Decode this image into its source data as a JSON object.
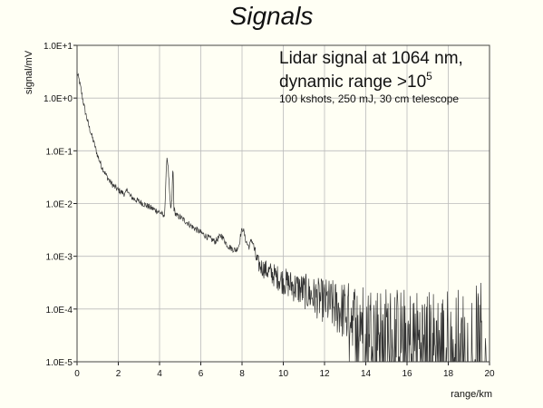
{
  "slide": {
    "title": "Signals"
  },
  "chart_data": {
    "type": "line",
    "title": "",
    "xlabel": "range/km",
    "ylabel": "signal/mV",
    "y_scale": "log",
    "xlim": [
      0,
      20
    ],
    "ylim": [
      1e-05,
      10
    ],
    "grid": true,
    "x_ticks": [
      "0",
      "2",
      "4",
      "6",
      "8",
      "10",
      "12",
      "14",
      "16",
      "18",
      "20"
    ],
    "y_ticks": [
      "1.0E+1",
      "1.0E+0",
      "1.0E-1",
      "1.0E-2",
      "1.0E-3",
      "1.0E-4",
      "1.0E-5"
    ],
    "annotation": {
      "line1": "Lidar signal at 1064 nm,",
      "line2_prefix": "dynamic range >10",
      "line2_sup": "5",
      "line3": "100 kshots, 250 mJ, 30 cm telescope"
    },
    "series_color": "#333333",
    "series": [
      {
        "values": [
          [
            0.0,
            3.0
          ],
          [
            0.1,
            2.2
          ],
          [
            0.2,
            1.4
          ],
          [
            0.3,
            0.85
          ],
          [
            0.4,
            0.55
          ],
          [
            0.5,
            0.38
          ],
          [
            0.6,
            0.27
          ],
          [
            0.8,
            0.15
          ],
          [
            1.0,
            0.08
          ],
          [
            1.2,
            0.05
          ],
          [
            1.4,
            0.035
          ],
          [
            1.6,
            0.026
          ],
          [
            1.8,
            0.021
          ],
          [
            2.0,
            0.018
          ],
          [
            2.2,
            0.016
          ],
          [
            2.35,
            0.015
          ],
          [
            2.45,
            0.019
          ],
          [
            2.55,
            0.014
          ],
          [
            2.8,
            0.012
          ],
          [
            3.0,
            0.011
          ],
          [
            3.3,
            0.0095
          ],
          [
            3.6,
            0.0082
          ],
          [
            3.9,
            0.0072
          ],
          [
            4.1,
            0.0065
          ],
          [
            4.2,
            0.0055
          ],
          [
            4.25,
            0.007
          ],
          [
            4.3,
            0.02
          ],
          [
            4.35,
            0.08
          ],
          [
            4.4,
            0.06
          ],
          [
            4.45,
            0.03
          ],
          [
            4.5,
            0.012
          ],
          [
            4.55,
            0.0075
          ],
          [
            4.6,
            0.012
          ],
          [
            4.65,
            0.055
          ],
          [
            4.7,
            0.008
          ],
          [
            4.8,
            0.006
          ],
          [
            5.0,
            0.0055
          ],
          [
            5.3,
            0.0045
          ],
          [
            5.6,
            0.0036
          ],
          [
            5.9,
            0.003
          ],
          [
            6.2,
            0.0025
          ],
          [
            6.5,
            0.0021
          ],
          [
            6.7,
            0.0019
          ],
          [
            6.85,
            0.0022
          ],
          [
            7.0,
            0.0025
          ],
          [
            7.15,
            0.002
          ],
          [
            7.3,
            0.0016
          ],
          [
            7.5,
            0.0014
          ],
          [
            7.7,
            0.0013
          ],
          [
            7.85,
            0.0016
          ],
          [
            7.95,
            0.0028
          ],
          [
            8.05,
            0.0034
          ],
          [
            8.15,
            0.0022
          ],
          [
            8.25,
            0.0017
          ],
          [
            8.35,
            0.0015
          ],
          [
            8.45,
            0.0021
          ],
          [
            8.55,
            0.0017
          ],
          [
            8.65,
            0.001
          ],
          [
            8.8,
            0.0007
          ],
          [
            9.0,
            0.0006
          ],
          [
            9.5,
            0.00045
          ],
          [
            10.0,
            0.00034
          ],
          [
            10.5,
            0.00027
          ],
          [
            11.0,
            0.00022
          ],
          [
            11.5,
            0.00017
          ],
          [
            12.0,
            0.00014
          ],
          [
            12.5,
            0.00011
          ],
          [
            13.0,
            9e-05
          ],
          [
            13.5,
            7.5e-05
          ],
          [
            14.0,
            6e-05
          ],
          [
            14.5,
            5e-05
          ],
          [
            15.0,
            4e-05
          ],
          [
            15.5,
            3.4e-05
          ],
          [
            16.0,
            2.8e-05
          ],
          [
            16.5,
            2.4e-05
          ],
          [
            17.0,
            2e-05
          ],
          [
            17.5,
            1.8e-05
          ],
          [
            18.0,
            1.6e-05
          ],
          [
            18.5,
            1.4e-05
          ],
          [
            19.0,
            1.3e-05
          ],
          [
            19.5,
            1.2e-05
          ],
          [
            20.0,
            1.1e-05
          ]
        ]
      }
    ]
  }
}
